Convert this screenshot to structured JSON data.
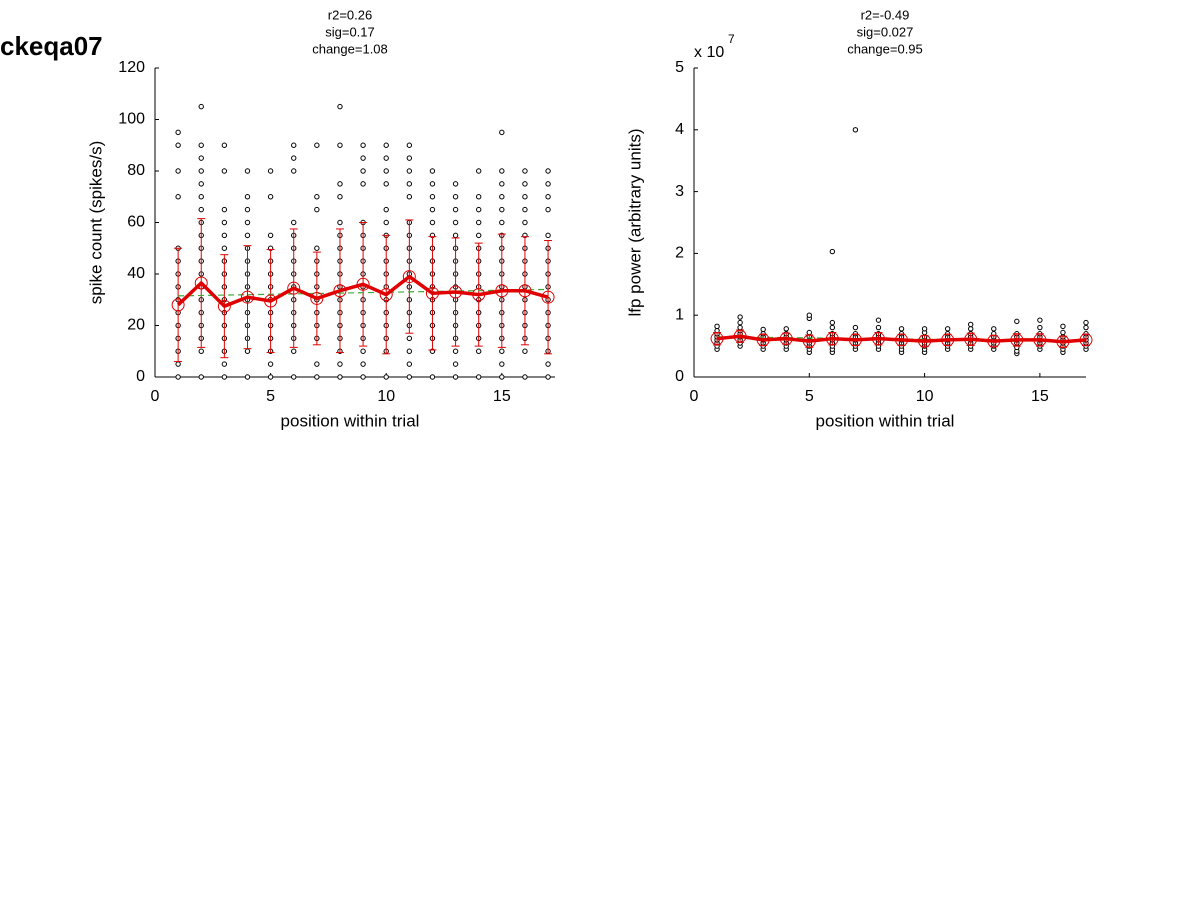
{
  "page_title": "ckeqa07",
  "chart_data": [
    {
      "type": "scatter",
      "title_lines": [
        "r2=0.26",
        "sig=0.17",
        "change=1.08"
      ],
      "xlabel": "position within trial",
      "ylabel": "spike count (spikes/s)",
      "xlim": [
        0,
        17.3
      ],
      "ylim": [
        0,
        120
      ],
      "xticks": [
        0,
        5,
        10,
        15
      ],
      "yticks": [
        0,
        20,
        40,
        60,
        80,
        100,
        120
      ],
      "point_color": "#000000",
      "mean_color": "#e00000",
      "fit_color": "#3aa83a",
      "positions": [
        1,
        2,
        3,
        4,
        5,
        6,
        7,
        8,
        9,
        10,
        11,
        12,
        13,
        14,
        15,
        16,
        17
      ],
      "raw": [
        [
          0,
          5,
          10,
          15,
          20,
          25,
          30,
          35,
          40,
          45,
          50,
          70,
          80,
          90,
          95
        ],
        [
          0,
          10,
          15,
          20,
          25,
          30,
          35,
          40,
          45,
          50,
          55,
          60,
          65,
          70,
          75,
          80,
          85,
          90,
          105
        ],
        [
          0,
          5,
          10,
          15,
          20,
          25,
          30,
          35,
          40,
          45,
          50,
          55,
          60,
          65,
          80,
          90
        ],
        [
          0,
          10,
          15,
          20,
          25,
          30,
          35,
          40,
          45,
          50,
          55,
          60,
          65,
          70,
          80
        ],
        [
          0,
          5,
          10,
          15,
          20,
          25,
          30,
          35,
          40,
          45,
          50,
          55,
          70,
          80
        ],
        [
          0,
          10,
          15,
          20,
          25,
          30,
          35,
          40,
          45,
          50,
          55,
          60,
          80,
          85,
          90
        ],
        [
          0,
          5,
          15,
          20,
          25,
          30,
          35,
          40,
          45,
          50,
          65,
          70,
          90
        ],
        [
          0,
          5,
          10,
          15,
          20,
          25,
          30,
          35,
          40,
          45,
          50,
          55,
          60,
          70,
          75,
          90,
          105
        ],
        [
          0,
          5,
          10,
          15,
          20,
          25,
          30,
          35,
          40,
          45,
          50,
          55,
          60,
          75,
          80,
          85,
          90
        ],
        [
          0,
          10,
          15,
          20,
          25,
          30,
          35,
          40,
          45,
          50,
          55,
          60,
          65,
          75,
          80,
          85,
          90
        ],
        [
          0,
          5,
          10,
          15,
          20,
          25,
          30,
          35,
          40,
          45,
          50,
          55,
          60,
          70,
          75,
          80,
          85,
          90
        ],
        [
          0,
          10,
          15,
          20,
          25,
          30,
          35,
          40,
          45,
          50,
          55,
          60,
          65,
          70,
          75,
          80
        ],
        [
          0,
          5,
          10,
          15,
          20,
          25,
          30,
          35,
          40,
          45,
          50,
          55,
          60,
          65,
          70,
          75
        ],
        [
          0,
          10,
          15,
          20,
          25,
          30,
          35,
          40,
          45,
          50,
          55,
          60,
          65,
          70,
          80
        ],
        [
          0,
          5,
          10,
          15,
          20,
          25,
          30,
          35,
          40,
          45,
          50,
          55,
          60,
          65,
          70,
          75,
          80,
          95
        ],
        [
          0,
          10,
          15,
          20,
          25,
          30,
          35,
          40,
          45,
          50,
          55,
          60,
          65,
          70,
          75,
          80
        ],
        [
          0,
          5,
          10,
          15,
          20,
          25,
          30,
          35,
          40,
          45,
          50,
          55,
          65,
          70,
          75,
          80
        ]
      ],
      "means": [
        28,
        36.5,
        27.5,
        31,
        29.5,
        34.5,
        30.5,
        33.5,
        36,
        32,
        39,
        32.5,
        33,
        32,
        33.5,
        33.5,
        31
      ],
      "sd": [
        22,
        25,
        20,
        20,
        20,
        23,
        18,
        24,
        24,
        23,
        22,
        22,
        21,
        20,
        22,
        21,
        22
      ],
      "fit": {
        "x": [
          1,
          17
        ],
        "y": [
          31.5,
          34
        ]
      }
    },
    {
      "type": "scatter",
      "title_lines": [
        "r2=-0.49",
        "sig=0.027",
        "change=0.95"
      ],
      "xlabel": "position within trial",
      "ylabel": "lfp power (arbitrary units)",
      "y_scale_label": "x 10",
      "y_scale_exponent": "7",
      "xlim": [
        0,
        17
      ],
      "ylim": [
        0,
        5
      ],
      "xticks": [
        0,
        5,
        10,
        15
      ],
      "yticks": [
        0,
        1,
        2,
        3,
        4,
        5
      ],
      "point_color": "#000000",
      "mean_color": "#e00000",
      "fit_color": "#3aa83a",
      "positions": [
        1,
        2,
        3,
        4,
        5,
        6,
        7,
        8,
        9,
        10,
        11,
        12,
        13,
        14,
        15,
        16,
        17
      ],
      "raw": [
        [
          0.45,
          0.5,
          0.55,
          0.6,
          0.65,
          0.7,
          0.75,
          0.82
        ],
        [
          0.5,
          0.55,
          0.6,
          0.65,
          0.7,
          0.75,
          0.8,
          0.88,
          0.97
        ],
        [
          0.45,
          0.5,
          0.55,
          0.6,
          0.65,
          0.7,
          0.77
        ],
        [
          0.45,
          0.5,
          0.55,
          0.6,
          0.65,
          0.7,
          0.78
        ],
        [
          0.4,
          0.45,
          0.5,
          0.55,
          0.6,
          0.65,
          0.72,
          0.95,
          1.0
        ],
        [
          0.4,
          0.45,
          0.5,
          0.55,
          0.6,
          0.65,
          0.7,
          0.8,
          0.88,
          2.03
        ],
        [
          0.45,
          0.5,
          0.55,
          0.6,
          0.65,
          0.7,
          0.8,
          4.0
        ],
        [
          0.45,
          0.5,
          0.55,
          0.6,
          0.65,
          0.7,
          0.8,
          0.92
        ],
        [
          0.4,
          0.45,
          0.5,
          0.55,
          0.6,
          0.65,
          0.7,
          0.78
        ],
        [
          0.4,
          0.45,
          0.5,
          0.55,
          0.6,
          0.65,
          0.72,
          0.78
        ],
        [
          0.45,
          0.5,
          0.55,
          0.6,
          0.65,
          0.7,
          0.78
        ],
        [
          0.45,
          0.5,
          0.55,
          0.6,
          0.65,
          0.7,
          0.78,
          0.85
        ],
        [
          0.45,
          0.5,
          0.55,
          0.6,
          0.65,
          0.7,
          0.78
        ],
        [
          0.38,
          0.42,
          0.48,
          0.55,
          0.6,
          0.65,
          0.7,
          0.9
        ],
        [
          0.45,
          0.5,
          0.55,
          0.6,
          0.65,
          0.7,
          0.8,
          0.92
        ],
        [
          0.4,
          0.45,
          0.5,
          0.55,
          0.6,
          0.65,
          0.72,
          0.82
        ],
        [
          0.45,
          0.5,
          0.55,
          0.6,
          0.65,
          0.7,
          0.8,
          0.88
        ]
      ],
      "means": [
        0.62,
        0.66,
        0.6,
        0.62,
        0.58,
        0.62,
        0.6,
        0.62,
        0.6,
        0.58,
        0.6,
        0.61,
        0.58,
        0.6,
        0.6,
        0.57,
        0.6
      ],
      "sd": [
        0.1,
        0.1,
        0.09,
        0.09,
        0.1,
        0.1,
        0.09,
        0.1,
        0.09,
        0.09,
        0.09,
        0.1,
        0.09,
        0.1,
        0.1,
        0.09,
        0.09
      ],
      "fit": {
        "x": [
          1,
          17
        ],
        "y": [
          0.65,
          0.58
        ]
      }
    }
  ]
}
